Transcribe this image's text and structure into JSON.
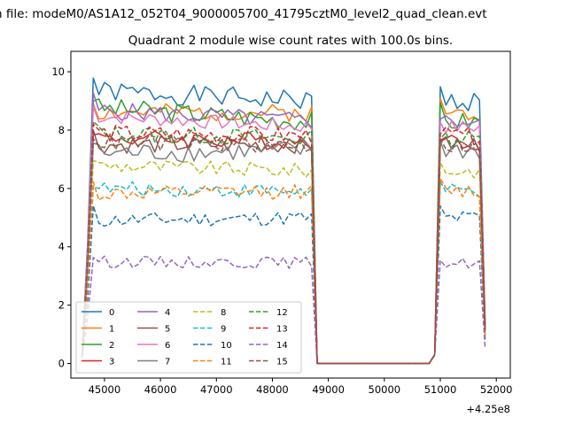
{
  "page": {
    "suptitle": "n file: modeM0/AS1A12_052T04_9000005700_41795cztM0_level2_quad_clean.evt"
  },
  "chart_data": {
    "type": "line",
    "title": "Quadrant 2 module wise count rates with 100.0s bins.",
    "xlabel": "",
    "ylabel": "",
    "x_offset_label": "+4.25e8",
    "xlim": [
      44400,
      52250
    ],
    "ylim": [
      -0.5,
      10.7
    ],
    "xticks": [
      45000,
      46000,
      47000,
      48000,
      49000,
      50000,
      51000,
      52000
    ],
    "yticks": [
      0,
      2,
      4,
      6,
      8,
      10
    ],
    "grid": false,
    "legend": {
      "placement": "lower-left",
      "ncol": 4
    },
    "segments": [
      {
        "start": 44600,
        "n": 42,
        "step": 100
      },
      {
        "start": 50900,
        "n": 10,
        "step": 100
      }
    ],
    "gap": {
      "start": 48800,
      "end": 50800,
      "value": 0
    },
    "series": [
      {
        "name": "0",
        "color": "#1f77b4",
        "dash": false,
        "level": 9.35,
        "tail": 9.0,
        "amp": 0.35,
        "seed": 1
      },
      {
        "name": "1",
        "color": "#ff7f0e",
        "dash": false,
        "level": 8.6,
        "tail": 8.6,
        "amp": 0.3,
        "seed": 2
      },
      {
        "name": "2",
        "color": "#2ca02c",
        "dash": false,
        "level": 8.8,
        "tail": 8.3,
        "amp": 0.35,
        "seed": 3
      },
      {
        "name": "3",
        "color": "#d62728",
        "dash": false,
        "level": 7.75,
        "tail": 7.6,
        "amp": 0.3,
        "seed": 4
      },
      {
        "name": "4",
        "color": "#9467bd",
        "dash": false,
        "level": 8.7,
        "tail": 8.3,
        "amp": 0.3,
        "seed": 5
      },
      {
        "name": "5",
        "color": "#8c564b",
        "dash": false,
        "level": 7.5,
        "tail": 7.5,
        "amp": 0.3,
        "seed": 6
      },
      {
        "name": "6",
        "color": "#e377c2",
        "dash": false,
        "level": 8.5,
        "tail": 8.1,
        "amp": 0.25,
        "seed": 7
      },
      {
        "name": "7",
        "color": "#7f7f7f",
        "dash": false,
        "level": 7.2,
        "tail": 7.3,
        "amp": 0.35,
        "seed": 8
      },
      {
        "name": "8",
        "color": "#bcbd22",
        "dash": true,
        "level": 6.8,
        "tail": 6.6,
        "amp": 0.25,
        "seed": 9
      },
      {
        "name": "9",
        "color": "#17becf",
        "dash": true,
        "level": 6.0,
        "tail": 5.9,
        "amp": 0.25,
        "seed": 10
      },
      {
        "name": "10",
        "color": "#1f77b4",
        "dash": true,
        "level": 4.9,
        "tail": 5.0,
        "amp": 0.25,
        "seed": 11
      },
      {
        "name": "11",
        "color": "#ff7f0e",
        "dash": true,
        "level": 5.8,
        "tail": 5.9,
        "amp": 0.25,
        "seed": 12
      },
      {
        "name": "12",
        "color": "#2ca02c",
        "dash": true,
        "level": 7.9,
        "tail": 7.7,
        "amp": 0.3,
        "seed": 13
      },
      {
        "name": "13",
        "color": "#d62728",
        "dash": true,
        "level": 7.9,
        "tail": 7.8,
        "amp": 0.3,
        "seed": 14
      },
      {
        "name": "14",
        "color": "#9467bd",
        "dash": true,
        "level": 3.5,
        "tail": 3.45,
        "amp": 0.2,
        "seed": 15
      },
      {
        "name": "15",
        "color": "#8c564b",
        "dash": true,
        "level": 7.6,
        "tail": 7.5,
        "amp": 0.3,
        "seed": 16
      }
    ]
  }
}
